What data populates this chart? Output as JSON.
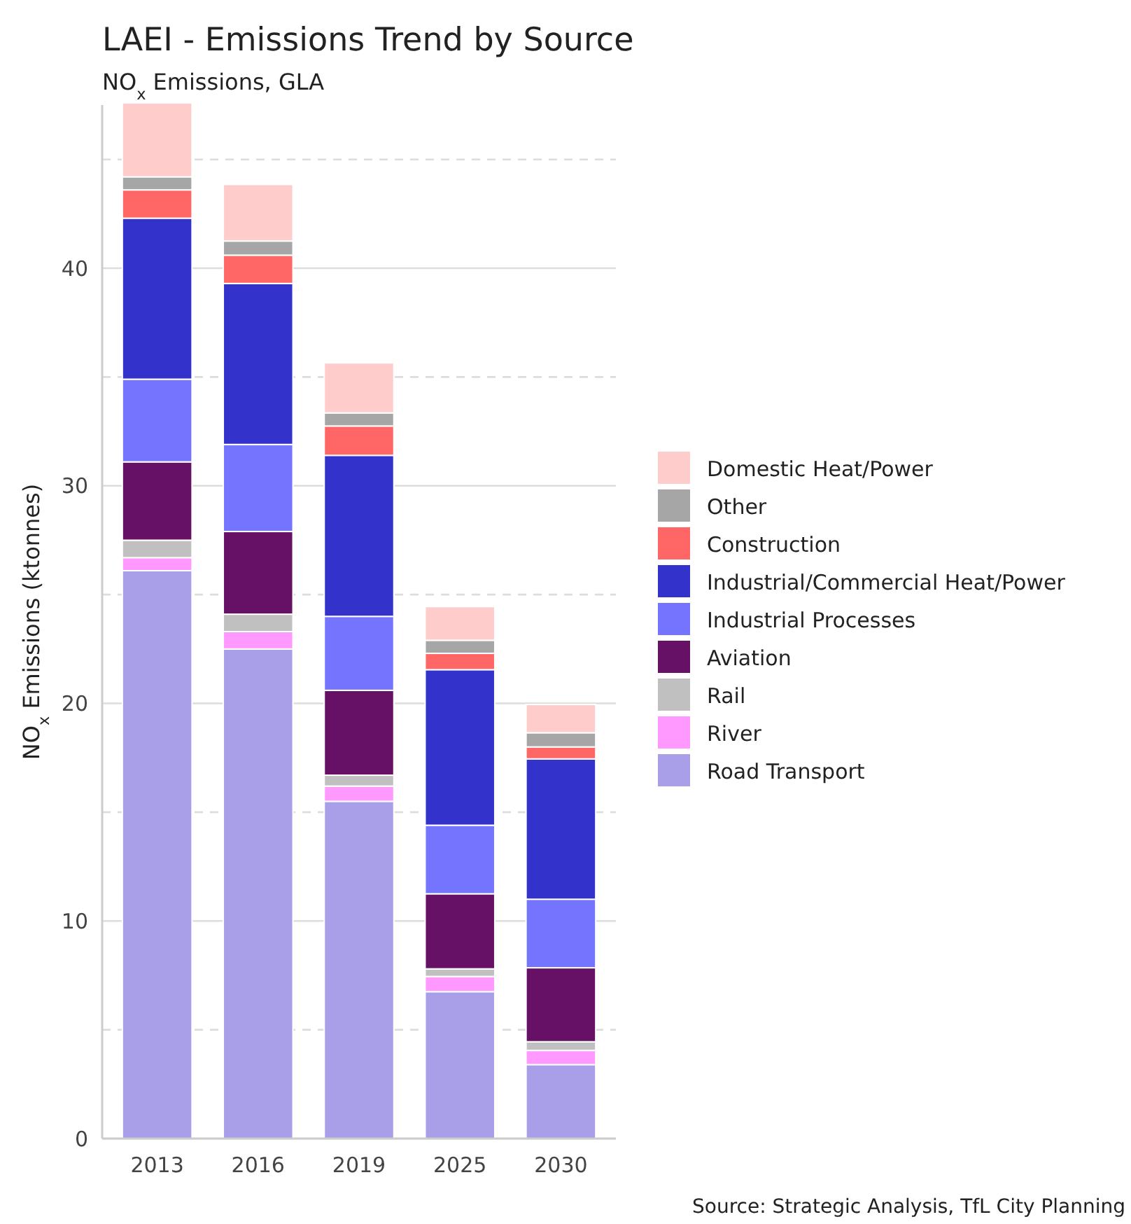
{
  "chart_data": {
    "type": "bar",
    "title": "LAEI - Emissions Trend by Source",
    "subtitle": "NO$_{x}$ Emissions, GLA",
    "ylabel": "NO$_{x}$ Emissions (ktonnes)",
    "annotations": [
      "Source: Strategic Analysis, TfL City Planning"
    ],
    "categories": [
      "2013",
      "2016",
      "2019",
      "2025",
      "2030"
    ],
    "stacked": true,
    "ylim": [
      0,
      47.5
    ],
    "yticks": [
      0,
      {
        "value": 5,
        "label": null
      },
      10,
      {
        "value": 15,
        "label": null
      },
      20,
      {
        "value": 25,
        "label": null
      },
      30,
      {
        "value": 35,
        "label": null
      },
      40,
      {
        "value": 45,
        "label": null
      }
    ],
    "grid": "y",
    "legend": "right",
    "series": [
      {
        "name": "Road Transport",
        "color": "#a99ee8",
        "values": [
          26.1,
          22.5,
          15.5,
          6.75,
          3.4
        ]
      },
      {
        "name": "River",
        "color": "#ff99ff",
        "values": [
          0.6,
          0.8,
          0.7,
          0.7,
          0.65
        ]
      },
      {
        "name": "Rail",
        "color": "#c0c0c0",
        "values": [
          0.8,
          0.8,
          0.5,
          0.35,
          0.4
        ]
      },
      {
        "name": "Aviation",
        "color": "#661166",
        "values": [
          3.6,
          3.8,
          3.9,
          3.45,
          3.4
        ]
      },
      {
        "name": "Industrial Processes",
        "color": "#7474ff",
        "values": [
          3.8,
          4.0,
          3.4,
          3.15,
          3.15
        ]
      },
      {
        "name": "Industrial/Commercial Heat/Power",
        "color": "#3333cc",
        "values": [
          7.4,
          7.4,
          7.4,
          7.15,
          6.45
        ]
      },
      {
        "name": "Construction",
        "color": "#ff6666",
        "values": [
          1.3,
          1.3,
          1.35,
          0.75,
          0.55
        ]
      },
      {
        "name": "Other",
        "color": "#a6a6a6",
        "values": [
          0.6,
          0.65,
          0.6,
          0.6,
          0.65
        ]
      },
      {
        "name": "Domestic Heat/Power",
        "color": "#ffcccc",
        "values": [
          3.4,
          2.6,
          2.3,
          1.55,
          1.3
        ]
      }
    ]
  }
}
